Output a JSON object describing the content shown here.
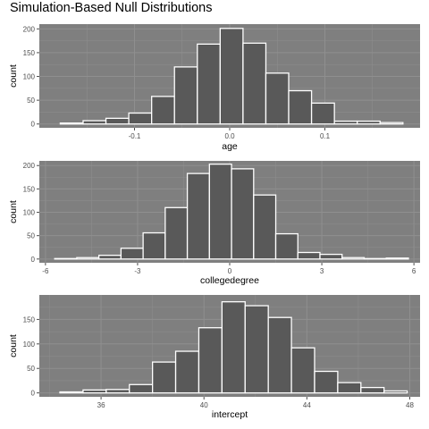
{
  "title": "Simulation-Based Null Distributions",
  "colors": {
    "panel_bg": "#7f7f7f",
    "grid": "#8f8f8f",
    "bar_fill": "#595959",
    "bar_stroke": "#ffffff",
    "text": "#000000",
    "tick_text": "#4d4d4d"
  },
  "chart_data": [
    {
      "type": "bar",
      "subtype": "histogram",
      "xlabel": "age",
      "ylabel": "count",
      "xlim": [
        -0.2,
        0.2
      ],
      "ylim": [
        -8,
        210
      ],
      "x_ticks": [
        {
          "value": -0.1,
          "label": "-0.1"
        },
        {
          "value": 0.0,
          "label": "0.0"
        },
        {
          "value": 0.1,
          "label": "0.1"
        }
      ],
      "y_ticks": [
        {
          "value": 0,
          "label": "0"
        },
        {
          "value": 50,
          "label": "50"
        },
        {
          "value": 100,
          "label": "100"
        },
        {
          "value": 150,
          "label": "150"
        },
        {
          "value": 200,
          "label": "200"
        }
      ],
      "bin_edges": [
        -0.178,
        -0.154,
        -0.13,
        -0.106,
        -0.082,
        -0.058,
        -0.034,
        -0.01,
        0.014,
        0.038,
        0.062,
        0.086,
        0.11,
        0.134,
        0.158,
        0.182
      ],
      "values": [
        2,
        7,
        12,
        23,
        58,
        120,
        168,
        201,
        170,
        107,
        70,
        44,
        6,
        6,
        3
      ],
      "grid": true
    },
    {
      "type": "bar",
      "subtype": "histogram",
      "xlabel": "collegedegree",
      "ylabel": "count",
      "xlim": [
        -6.2,
        6.2
      ],
      "ylim": [
        -8,
        210
      ],
      "x_ticks": [
        {
          "value": -6,
          "label": "-6"
        },
        {
          "value": -3,
          "label": "-3"
        },
        {
          "value": 0,
          "label": "0"
        },
        {
          "value": 3,
          "label": "3"
        },
        {
          "value": 6,
          "label": "6"
        }
      ],
      "y_ticks": [
        {
          "value": 0,
          "label": "0"
        },
        {
          "value": 50,
          "label": "50"
        },
        {
          "value": 100,
          "label": "100"
        },
        {
          "value": 150,
          "label": "150"
        },
        {
          "value": 200,
          "label": "200"
        }
      ],
      "bin_edges": [
        -5.7,
        -4.98,
        -4.26,
        -3.54,
        -2.82,
        -2.1,
        -1.38,
        -0.66,
        0.06,
        0.78,
        1.5,
        2.22,
        2.94,
        3.66,
        4.38,
        5.1,
        5.82
      ],
      "values": [
        1,
        3,
        8,
        23,
        56,
        110,
        183,
        203,
        193,
        137,
        54,
        14,
        10,
        3,
        1,
        2
      ],
      "grid": true
    },
    {
      "type": "bar",
      "subtype": "histogram",
      "xlabel": "intercept",
      "ylabel": "count",
      "xlim": [
        33.6,
        48.4
      ],
      "ylim": [
        -8,
        200
      ],
      "x_ticks": [
        {
          "value": 36,
          "label": "36"
        },
        {
          "value": 40,
          "label": "40"
        },
        {
          "value": 44,
          "label": "44"
        },
        {
          "value": 48,
          "label": "48"
        }
      ],
      "y_ticks": [
        {
          "value": 0,
          "label": "0"
        },
        {
          "value": 50,
          "label": "50"
        },
        {
          "value": 100,
          "label": "100"
        },
        {
          "value": 150,
          "label": "150"
        }
      ],
      "bin_edges": [
        34.4,
        35.3,
        36.2,
        37.1,
        38.0,
        38.9,
        39.8,
        40.7,
        41.6,
        42.5,
        43.4,
        44.3,
        45.2,
        46.1,
        47.0,
        47.9
      ],
      "values": [
        2,
        6,
        7,
        17,
        63,
        85,
        133,
        186,
        178,
        154,
        92,
        44,
        21,
        11,
        4
      ],
      "grid": true
    }
  ]
}
